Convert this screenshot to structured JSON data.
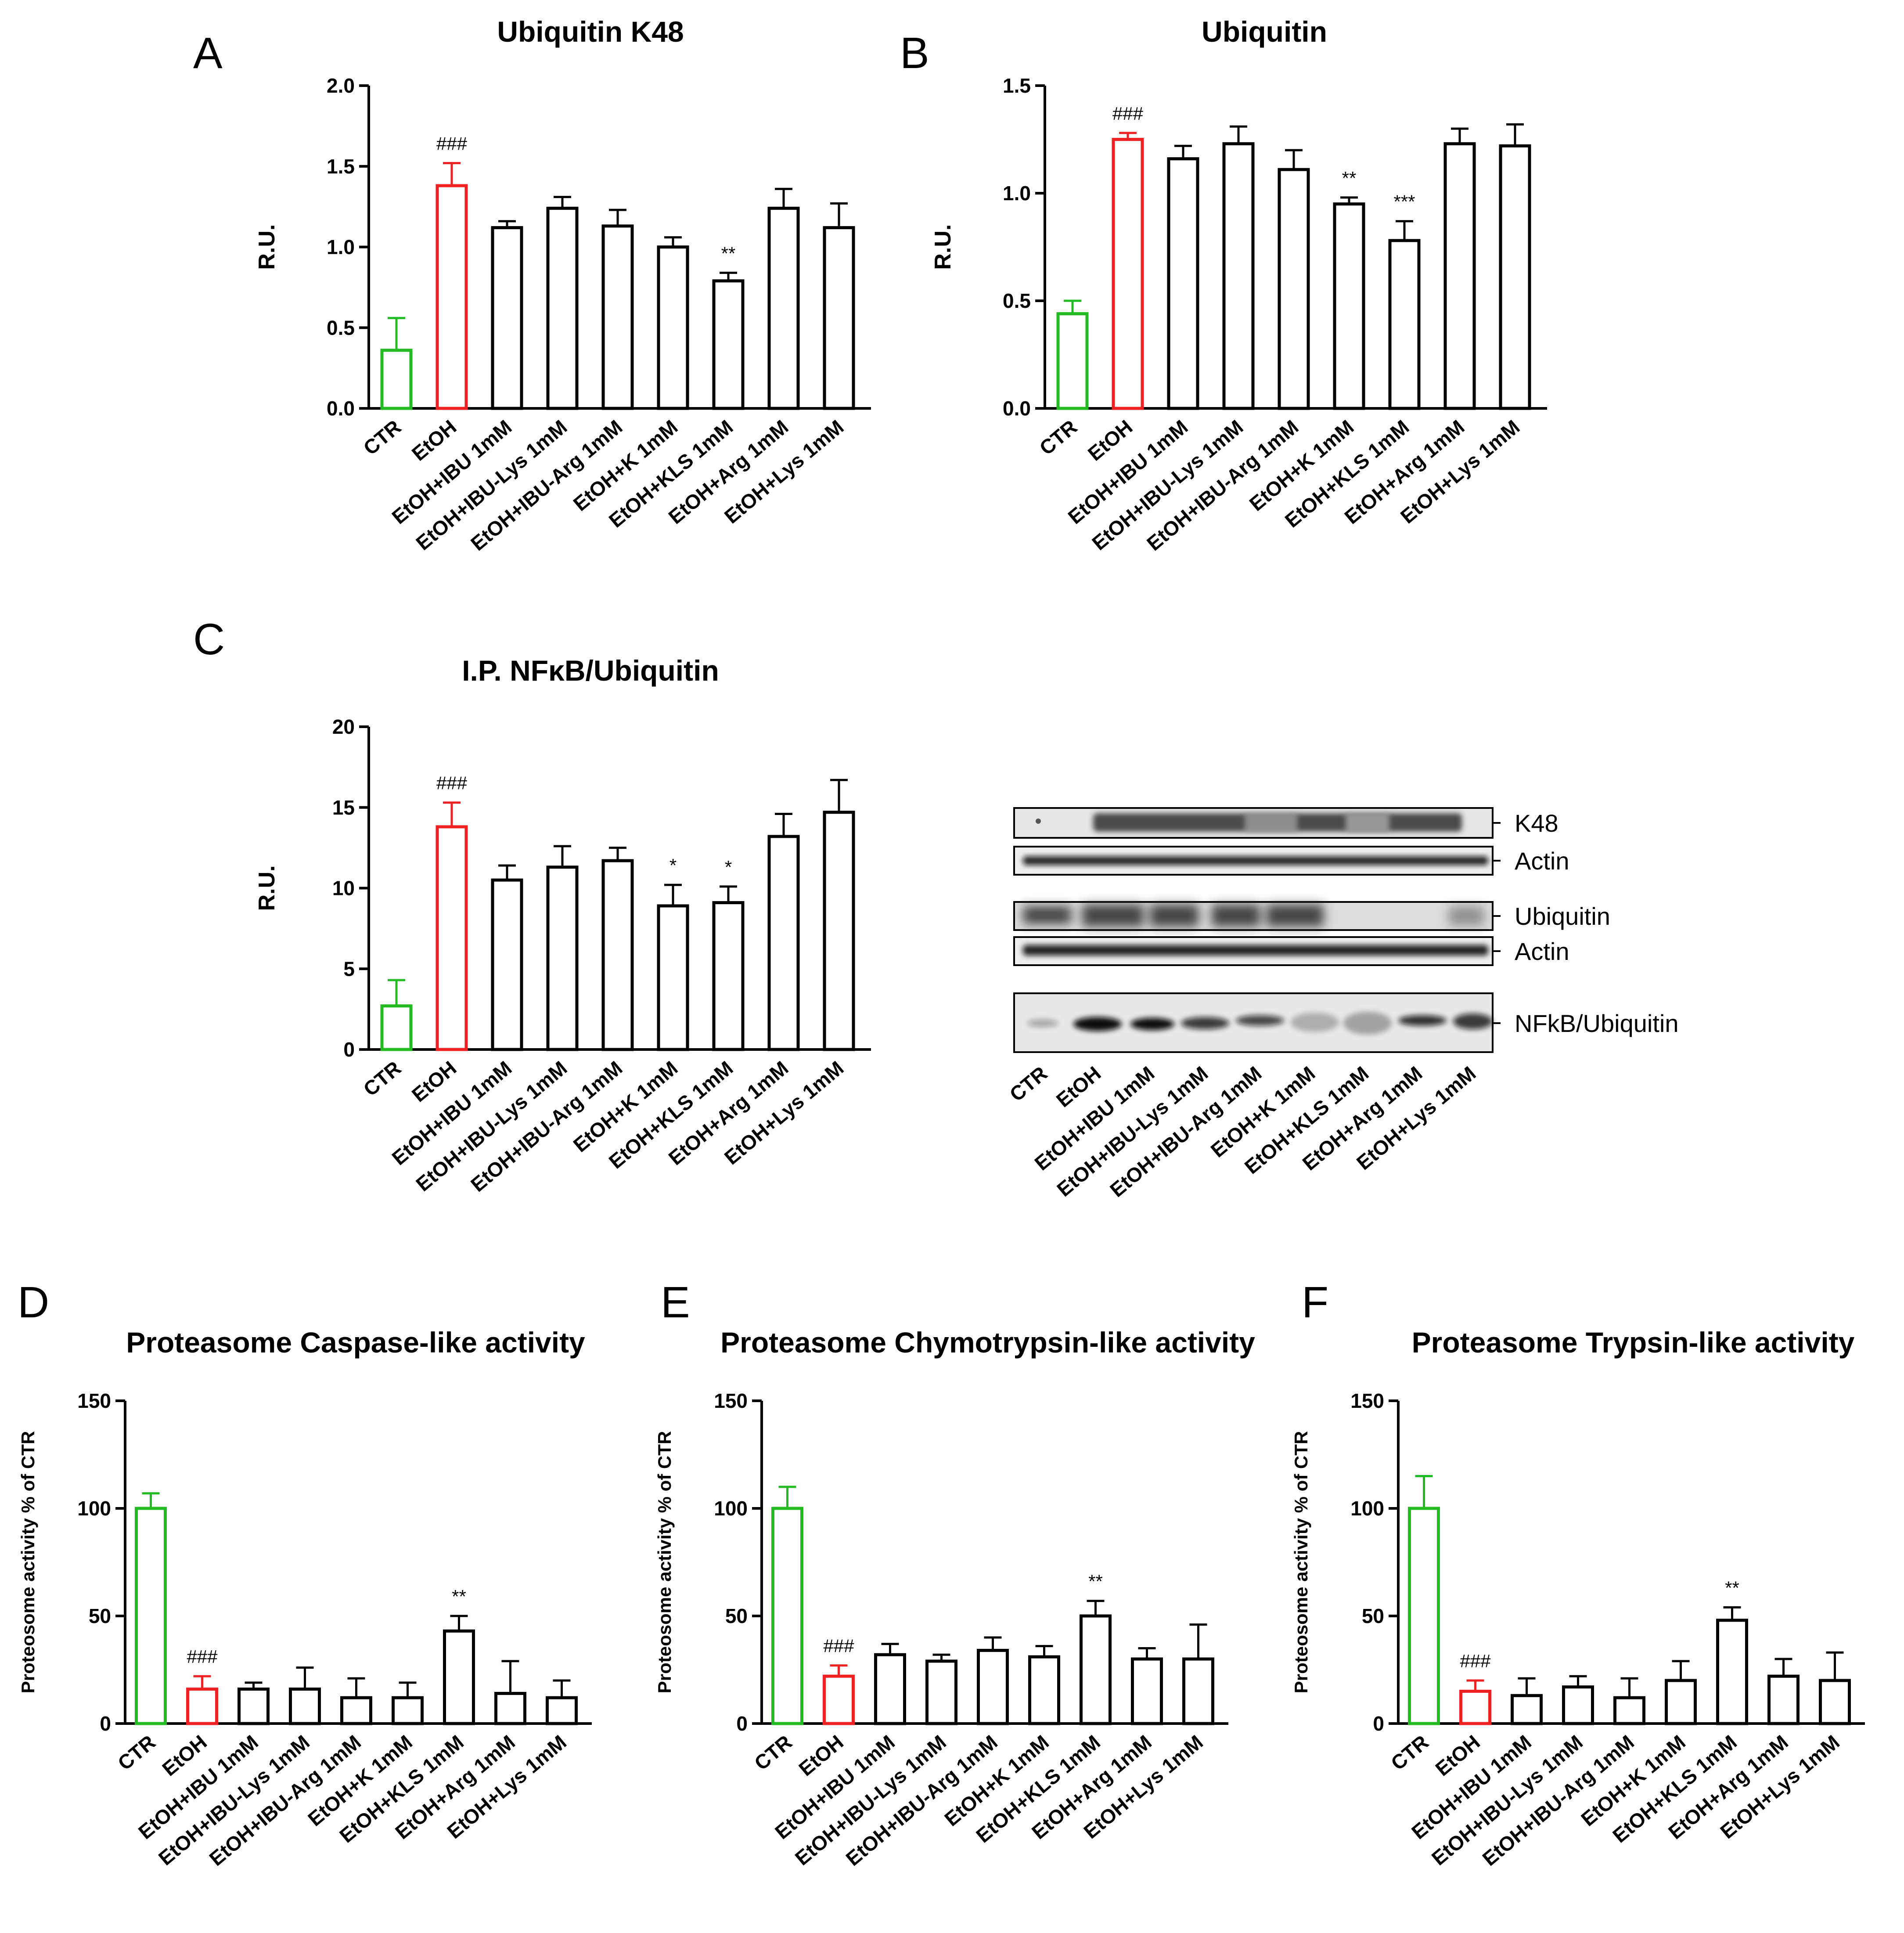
{
  "panels": {
    "A": "A",
    "B": "B",
    "C": "C",
    "D": "D",
    "E": "E",
    "F": "F"
  },
  "colors": {
    "ctr": "#22bb22",
    "etoh": "#ee2222",
    "treatment": "#000000"
  },
  "chart_data": [
    {
      "id": "A",
      "type": "bar",
      "title": "Ubiquitin K48",
      "xlabel": "",
      "ylabel": "R.U.",
      "ylim": [
        0,
        2.0
      ],
      "yticks": [
        "0.0",
        "0.5",
        "1.0",
        "1.5",
        "2.0"
      ],
      "categories": [
        "CTR",
        "EtOH",
        "EtOH+IBU 1mM",
        "EtOH+IBU-Lys 1mM",
        "EtOH+IBU-Arg 1mM",
        "EtOH+K 1mM",
        "EtOH+KLS 1mM",
        "EtOH+Arg 1mM",
        "EtOH+Lys 1mM"
      ],
      "values": [
        0.36,
        1.38,
        1.12,
        1.24,
        1.13,
        1.0,
        0.79,
        1.24,
        1.12
      ],
      "errors": [
        0.2,
        0.14,
        0.04,
        0.07,
        0.1,
        0.06,
        0.05,
        0.12,
        0.15
      ],
      "annotations": [
        "",
        "###",
        "",
        "",
        "",
        "",
        "**",
        "",
        ""
      ]
    },
    {
      "id": "B",
      "type": "bar",
      "title": "Ubiquitin",
      "xlabel": "",
      "ylabel": "R.U.",
      "ylim": [
        0,
        1.5
      ],
      "yticks": [
        "0.0",
        "0.5",
        "1.0",
        "1.5"
      ],
      "categories": [
        "CTR",
        "EtOH",
        "EtOH+IBU 1mM",
        "EtOH+IBU-Lys 1mM",
        "EtOH+IBU-Arg 1mM",
        "EtOH+K 1mM",
        "EtOH+KLS 1mM",
        "EtOH+Arg 1mM",
        "EtOH+Lys 1mM"
      ],
      "values": [
        0.44,
        1.25,
        1.16,
        1.23,
        1.11,
        0.95,
        0.78,
        1.23,
        1.22
      ],
      "errors": [
        0.06,
        0.03,
        0.06,
        0.08,
        0.09,
        0.03,
        0.09,
        0.07,
        0.1
      ],
      "annotations": [
        "",
        "###",
        "",
        "",
        "",
        "**",
        "***",
        "",
        ""
      ]
    },
    {
      "id": "C",
      "type": "bar",
      "title": "I.P. NFκB/Ubiquitin",
      "xlabel": "",
      "ylabel": "R.U.",
      "ylim": [
        0,
        20
      ],
      "yticks": [
        "0",
        "5",
        "10",
        "15",
        "20"
      ],
      "categories": [
        "CTR",
        "EtOH",
        "EtOH+IBU 1mM",
        "EtOH+IBU-Lys 1mM",
        "EtOH+IBU-Arg 1mM",
        "EtOH+K 1mM",
        "EtOH+KLS 1mM",
        "EtOH+Arg 1mM",
        "EtOH+Lys 1mM"
      ],
      "values": [
        2.7,
        13.8,
        10.5,
        11.3,
        11.7,
        8.9,
        9.1,
        13.2,
        14.7
      ],
      "errors": [
        1.6,
        1.5,
        0.9,
        1.3,
        0.8,
        1.3,
        1.0,
        1.4,
        2.0
      ],
      "annotations": [
        "",
        "###",
        "",
        "",
        "",
        "*",
        "*",
        "",
        ""
      ]
    },
    {
      "id": "D",
      "type": "bar",
      "title": "Proteasome Caspase-like activity",
      "xlabel": "",
      "ylabel": "Proteosome activity % of CTR",
      "ylim": [
        0,
        150
      ],
      "yticks": [
        "0",
        "50",
        "100",
        "150"
      ],
      "categories": [
        "CTR",
        "EtOH",
        "EtOH+IBU 1mM",
        "EtOH+IBU-Lys 1mM",
        "EtOH+IBU-Arg 1mM",
        "EtOH+K 1mM",
        "EtOH+KLS 1mM",
        "EtOH+Arg 1mM",
        "EtOH+Lys 1mM"
      ],
      "values": [
        100,
        16,
        16,
        16,
        12,
        12,
        43,
        14,
        12
      ],
      "errors": [
        7,
        6,
        3,
        10,
        9,
        7,
        7,
        15,
        8
      ],
      "annotations": [
        "",
        "###",
        "",
        "",
        "",
        "",
        "**",
        "",
        ""
      ]
    },
    {
      "id": "E",
      "type": "bar",
      "title": "Proteasome Chymotrypsin-like activity",
      "xlabel": "",
      "ylabel": "Proteosome activity % of CTR",
      "ylim": [
        0,
        150
      ],
      "yticks": [
        "0",
        "50",
        "100",
        "150"
      ],
      "categories": [
        "CTR",
        "EtOH",
        "EtOH+IBU 1mM",
        "EtOH+IBU-Lys 1mM",
        "EtOH+IBU-Arg 1mM",
        "EtOH+K 1mM",
        "EtOH+KLS 1mM",
        "EtOH+Arg 1mM",
        "EtOH+Lys 1mM"
      ],
      "values": [
        100,
        22,
        32,
        29,
        34,
        31,
        50,
        30,
        30
      ],
      "errors": [
        10,
        5,
        5,
        3,
        6,
        5,
        7,
        5,
        16
      ],
      "annotations": [
        "",
        "###",
        "",
        "",
        "",
        "",
        "**",
        "",
        ""
      ]
    },
    {
      "id": "F",
      "type": "bar",
      "title": "Proteasome Trypsin-like activity",
      "xlabel": "",
      "ylabel": "Proteosome activity % of CTR",
      "ylim": [
        0,
        150
      ],
      "yticks": [
        "0",
        "50",
        "100",
        "150"
      ],
      "categories": [
        "CTR",
        "EtOH",
        "EtOH+IBU 1mM",
        "EtOH+IBU-Lys 1mM",
        "EtOH+IBU-Arg 1mM",
        "EtOH+K 1mM",
        "EtOH+KLS 1mM",
        "EtOH+Arg 1mM",
        "EtOH+Lys 1mM"
      ],
      "values": [
        100,
        15,
        13,
        17,
        12,
        20,
        48,
        22,
        20
      ],
      "errors": [
        15,
        5,
        8,
        5,
        9,
        9,
        6,
        8,
        13
      ],
      "annotations": [
        "",
        "###",
        "",
        "",
        "",
        "",
        "**",
        "",
        ""
      ]
    }
  ],
  "blot": {
    "rows": [
      {
        "label": "K48"
      },
      {
        "label": "Actin"
      },
      {
        "label": "Ubiquitin"
      },
      {
        "label": "Actin"
      },
      {
        "label": "NFkB/Ubiquitin"
      }
    ],
    "lanes": [
      "CTR",
      "EtOH",
      "EtOH+IBU 1mM",
      "EtOH+IBU-Lys 1mM",
      "EtOH+IBU-Arg 1mM",
      "EtOH+K 1mM",
      "EtOH+KLS 1mM",
      "EtOH+Arg 1mM",
      "EtOH+Lys 1mM"
    ]
  }
}
